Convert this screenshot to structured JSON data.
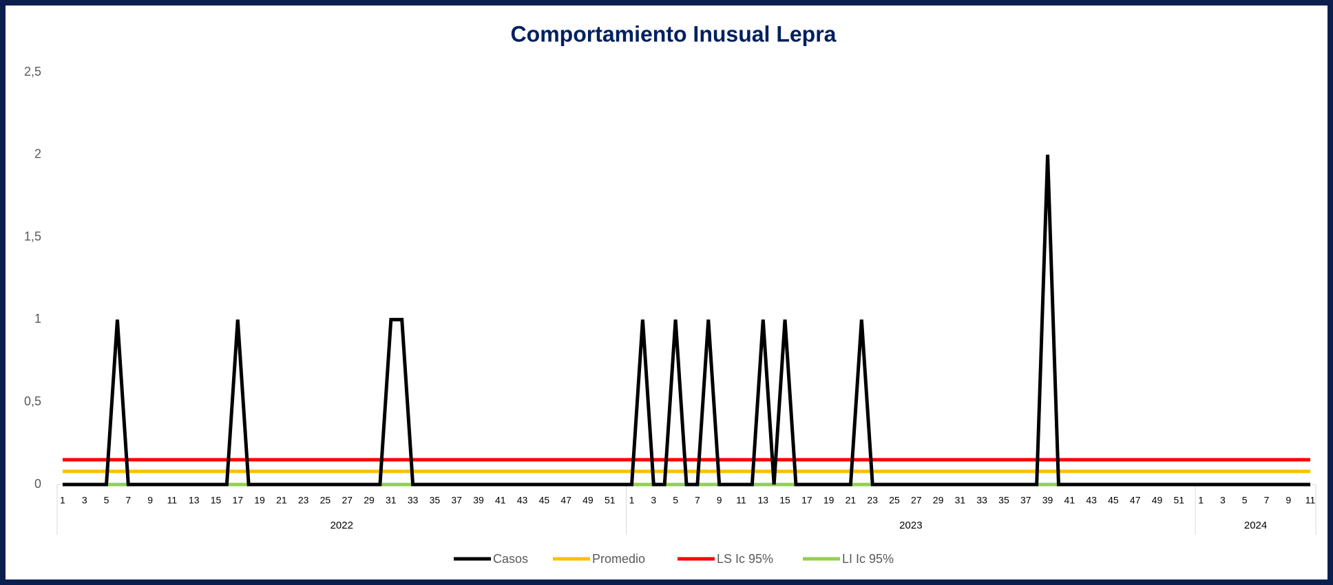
{
  "chart_data": {
    "type": "line",
    "title": "Comportamiento Inusual Lepra",
    "category_groups": [
      {
        "label": "2022",
        "categories": [
          "1",
          null,
          "3",
          null,
          "5",
          null,
          "7",
          null,
          "9",
          null,
          "11",
          null,
          "13",
          null,
          "15",
          null,
          "17",
          null,
          "19",
          null,
          "21",
          null,
          "23",
          null,
          "25",
          null,
          "27",
          null,
          "29",
          null,
          "31",
          null,
          "33",
          null,
          "35",
          null,
          "37",
          null,
          "39",
          null,
          "41",
          null,
          "43",
          null,
          "45",
          null,
          "47",
          null,
          "49",
          null,
          "51",
          null
        ]
      },
      {
        "label": "2023",
        "categories": [
          "1",
          null,
          "3",
          null,
          "5",
          null,
          "7",
          null,
          "9",
          null,
          "11",
          null,
          "13",
          null,
          "15",
          null,
          "17",
          null,
          "19",
          null,
          "21",
          null,
          "23",
          null,
          "25",
          null,
          "27",
          null,
          "29",
          null,
          "31",
          null,
          "33",
          null,
          "35",
          null,
          "37",
          null,
          "39",
          null,
          "41",
          null,
          "43",
          null,
          "45",
          null,
          "47",
          null,
          "49",
          null,
          "51",
          null
        ]
      },
      {
        "label": "2024",
        "categories": [
          "1",
          null,
          "3",
          null,
          "5",
          null,
          "7",
          null,
          "9",
          null,
          "11"
        ]
      }
    ],
    "series": [
      {
        "name": "Casos",
        "color": "#000000",
        "values": [
          0,
          0,
          0,
          0,
          0,
          1,
          0,
          0,
          0,
          0,
          0,
          0,
          0,
          0,
          0,
          0,
          1,
          0,
          0,
          0,
          0,
          0,
          0,
          0,
          0,
          0,
          0,
          0,
          0,
          0,
          1,
          1,
          0,
          0,
          0,
          0,
          0,
          0,
          0,
          0,
          0,
          0,
          0,
          0,
          0,
          0,
          0,
          0,
          0,
          0,
          0,
          0,
          0,
          1,
          0,
          0,
          1,
          0,
          0,
          1,
          0,
          0,
          0,
          0,
          1,
          0,
          1,
          0,
          0,
          0,
          0,
          0,
          0,
          1,
          0,
          0,
          0,
          0,
          0,
          0,
          0,
          0,
          0,
          0,
          0,
          0,
          0,
          0,
          0,
          0,
          2,
          0,
          0,
          0,
          0,
          0,
          0,
          0,
          0,
          0,
          0,
          0,
          0,
          0,
          0,
          0,
          0,
          0,
          0,
          0,
          0,
          0,
          0,
          0,
          0
        ]
      },
      {
        "name": "Promedio",
        "color": "#ffc000",
        "values": [
          0.08,
          0.08,
          0.08,
          0.08,
          0.08,
          0.08,
          0.08,
          0.08,
          0.08,
          0.08,
          0.08,
          0.08,
          0.08,
          0.08,
          0.08,
          0.08,
          0.08,
          0.08,
          0.08,
          0.08,
          0.08,
          0.08,
          0.08,
          0.08,
          0.08,
          0.08,
          0.08,
          0.08,
          0.08,
          0.08,
          0.08,
          0.08,
          0.08,
          0.08,
          0.08,
          0.08,
          0.08,
          0.08,
          0.08,
          0.08,
          0.08,
          0.08,
          0.08,
          0.08,
          0.08,
          0.08,
          0.08,
          0.08,
          0.08,
          0.08,
          0.08,
          0.08,
          0.08,
          0.08,
          0.08,
          0.08,
          0.08,
          0.08,
          0.08,
          0.08,
          0.08,
          0.08,
          0.08,
          0.08,
          0.08,
          0.08,
          0.08,
          0.08,
          0.08,
          0.08,
          0.08,
          0.08,
          0.08,
          0.08,
          0.08,
          0.08,
          0.08,
          0.08,
          0.08,
          0.08,
          0.08,
          0.08,
          0.08,
          0.08,
          0.08,
          0.08,
          0.08,
          0.08,
          0.08,
          0.08,
          0.08,
          0.08,
          0.08,
          0.08,
          0.08,
          0.08,
          0.08,
          0.08,
          0.08,
          0.08,
          0.08,
          0.08,
          0.08,
          0.08,
          0.08,
          0.08,
          0.08,
          0.08,
          0.08,
          0.08,
          0.08,
          0.08,
          0.08,
          0.08,
          0.08
        ]
      },
      {
        "name": "LS Ic 95%",
        "color": "#ff0000",
        "values": [
          0.15,
          0.15,
          0.15,
          0.15,
          0.15,
          0.15,
          0.15,
          0.15,
          0.15,
          0.15,
          0.15,
          0.15,
          0.15,
          0.15,
          0.15,
          0.15,
          0.15,
          0.15,
          0.15,
          0.15,
          0.15,
          0.15,
          0.15,
          0.15,
          0.15,
          0.15,
          0.15,
          0.15,
          0.15,
          0.15,
          0.15,
          0.15,
          0.15,
          0.15,
          0.15,
          0.15,
          0.15,
          0.15,
          0.15,
          0.15,
          0.15,
          0.15,
          0.15,
          0.15,
          0.15,
          0.15,
          0.15,
          0.15,
          0.15,
          0.15,
          0.15,
          0.15,
          0.15,
          0.15,
          0.15,
          0.15,
          0.15,
          0.15,
          0.15,
          0.15,
          0.15,
          0.15,
          0.15,
          0.15,
          0.15,
          0.15,
          0.15,
          0.15,
          0.15,
          0.15,
          0.15,
          0.15,
          0.15,
          0.15,
          0.15,
          0.15,
          0.15,
          0.15,
          0.15,
          0.15,
          0.15,
          0.15,
          0.15,
          0.15,
          0.15,
          0.15,
          0.15,
          0.15,
          0.15,
          0.15,
          0.15,
          0.15,
          0.15,
          0.15,
          0.15,
          0.15,
          0.15,
          0.15,
          0.15,
          0.15,
          0.15,
          0.15,
          0.15,
          0.15,
          0.15,
          0.15,
          0.15,
          0.15,
          0.15,
          0.15,
          0.15,
          0.15,
          0.15,
          0.15,
          0.15
        ]
      },
      {
        "name": "LI Ic 95%",
        "color": "#92d050",
        "values": [
          0,
          0,
          0,
          0,
          0,
          0,
          0,
          0,
          0,
          0,
          0,
          0,
          0,
          0,
          0,
          0,
          0,
          0,
          0,
          0,
          0,
          0,
          0,
          0,
          0,
          0,
          0,
          0,
          0,
          0,
          0,
          0,
          0,
          0,
          0,
          0,
          0,
          0,
          0,
          0,
          0,
          0,
          0,
          0,
          0,
          0,
          0,
          0,
          0,
          0,
          0,
          0,
          0,
          0,
          0,
          0,
          0,
          0,
          0,
          0,
          0,
          0,
          0,
          0,
          0,
          0,
          0,
          0,
          0,
          0,
          0,
          0,
          0,
          0,
          0,
          0,
          0,
          0,
          0,
          0,
          0,
          0,
          0,
          0,
          0,
          0,
          0,
          0,
          0,
          0,
          0,
          0,
          0,
          0,
          0,
          0,
          0,
          0,
          0,
          0,
          0,
          0,
          0,
          0,
          0,
          0,
          0,
          0,
          0,
          0,
          0,
          0,
          0,
          0,
          0
        ]
      }
    ],
    "ylim": [
      0,
      2.5
    ],
    "yticks": [
      0,
      {
        "value": 0.5,
        "label": "0,5"
      },
      1,
      {
        "value": 1.5,
        "label": "1,5"
      },
      2,
      {
        "value": 2.5,
        "label": "2,5"
      }
    ],
    "grid": false,
    "legend": "bottom"
  }
}
